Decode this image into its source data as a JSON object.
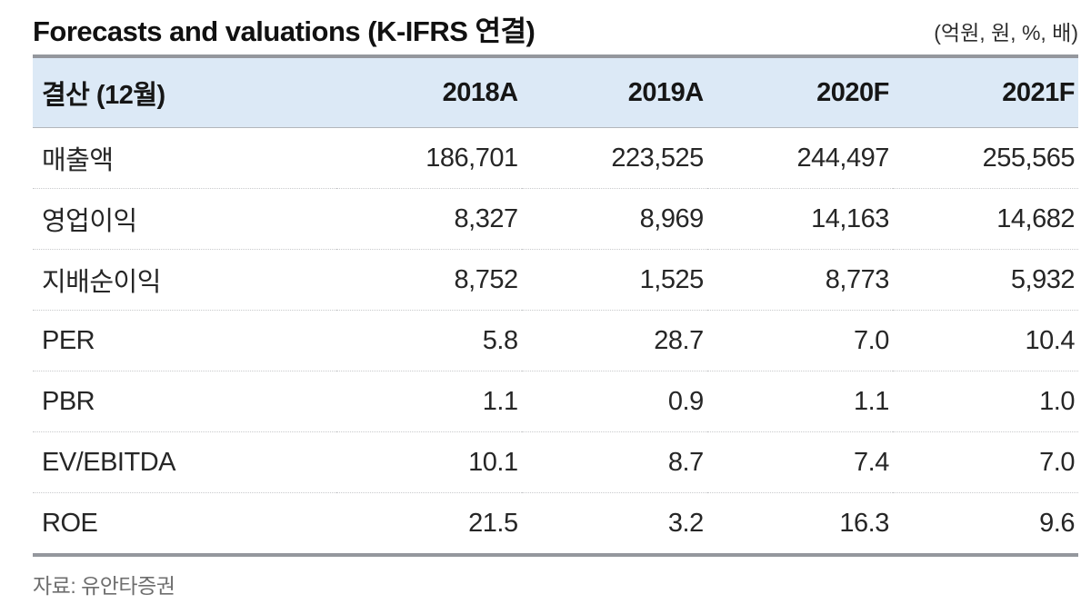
{
  "header": {
    "title": "Forecasts and valuations (K-IFRS 연결)",
    "units": "(억원, 원, %, 배)"
  },
  "chart_data": {
    "type": "table",
    "title": "Forecasts and valuations (K-IFRS 연결)",
    "columns": [
      "결산 (12월)",
      "2018A",
      "2019A",
      "2020F",
      "2021F"
    ],
    "rows": [
      {
        "label": "매출액",
        "values": [
          "186,701",
          "223,525",
          "244,497",
          "255,565"
        ]
      },
      {
        "label": "영업이익",
        "values": [
          "8,327",
          "8,969",
          "14,163",
          "14,682"
        ]
      },
      {
        "label": "지배순이익",
        "values": [
          "8,752",
          "1,525",
          "8,773",
          "5,932"
        ]
      },
      {
        "label": "PER",
        "values": [
          "5.8",
          "28.7",
          "7.0",
          "10.4"
        ]
      },
      {
        "label": "PBR",
        "values": [
          "1.1",
          "0.9",
          "1.1",
          "1.0"
        ]
      },
      {
        "label": "EV/EBITDA",
        "values": [
          "10.1",
          "8.7",
          "7.4",
          "7.0"
        ]
      },
      {
        "label": "ROE",
        "values": [
          "21.5",
          "3.2",
          "16.3",
          "9.6"
        ]
      }
    ]
  },
  "footer": {
    "source": "자료: 유안타증권"
  },
  "colors": {
    "header_bg": "#dce9f6",
    "thick_rule": "#94979d",
    "header_divider": "#b3b6bb",
    "row_divider": "#c9cacc",
    "text": "#262626",
    "muted_text": "#6e6e6e"
  }
}
